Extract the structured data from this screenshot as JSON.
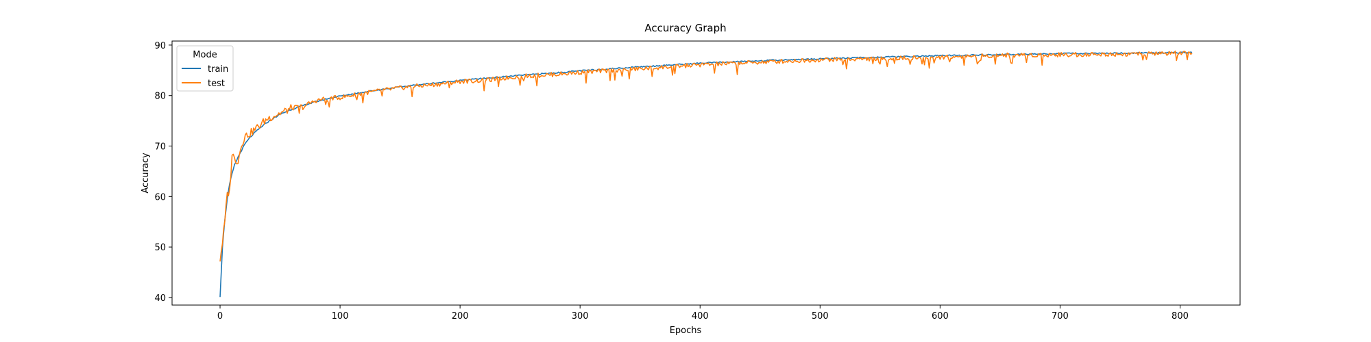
{
  "chart_data": {
    "type": "line",
    "title": "Accuracy Graph",
    "xlabel": "Epochs",
    "ylabel": "Accuracy",
    "xlim": [
      -40,
      850
    ],
    "ylim": [
      38.5,
      90.8
    ],
    "x_ticks": [
      0,
      100,
      200,
      300,
      400,
      500,
      600,
      700,
      800
    ],
    "y_ticks": [
      40,
      50,
      60,
      70,
      80,
      90
    ],
    "grid": false,
    "legend": {
      "title": "Mode",
      "placement": "top-left"
    },
    "x_range": [
      0,
      810
    ],
    "series": [
      {
        "name": "train",
        "color": "#1f77b4",
        "x": [
          0,
          2,
          4,
          6,
          8,
          10,
          12,
          15,
          18,
          21,
          25,
          30,
          35,
          40,
          50,
          60,
          70,
          80,
          90,
          100,
          120,
          140,
          160,
          180,
          200,
          220,
          250,
          280,
          300,
          350,
          400,
          450,
          500,
          550,
          600,
          650,
          700,
          750,
          800,
          810
        ],
        "values": [
          40.2,
          50.0,
          55.5,
          59.5,
          62.5,
          64.5,
          66.2,
          67.8,
          69.2,
          70.5,
          71.7,
          72.9,
          73.9,
          74.8,
          76.3,
          77.3,
          78.1,
          78.8,
          79.4,
          79.9,
          80.7,
          81.4,
          82.0,
          82.5,
          83.0,
          83.4,
          84.0,
          84.5,
          84.9,
          85.7,
          86.4,
          86.9,
          87.3,
          87.6,
          87.9,
          88.1,
          88.3,
          88.4,
          88.5,
          88.5
        ]
      },
      {
        "name": "test",
        "color": "#ff7f0e",
        "x": [
          0,
          2,
          4,
          6,
          8,
          10,
          12,
          15,
          18,
          21,
          25,
          30,
          35,
          40,
          50,
          60,
          70,
          80,
          90,
          100,
          120,
          140,
          160,
          180,
          200,
          220,
          250,
          280,
          300,
          350,
          400,
          450,
          500,
          550,
          600,
          650,
          700,
          750,
          800,
          810
        ],
        "values": [
          47.5,
          51.0,
          55.0,
          60.5,
          61.0,
          68.5,
          67.5,
          67.0,
          70.5,
          72.0,
          72.5,
          73.5,
          74.5,
          75.5,
          76.5,
          77.5,
          78.0,
          79.0,
          79.5,
          79.6,
          80.5,
          81.2,
          81.8,
          82.2,
          82.8,
          83.0,
          83.8,
          84.2,
          84.6,
          85.3,
          86.1,
          86.6,
          87.1,
          87.3,
          87.6,
          88.0,
          88.1,
          88.2,
          88.4,
          88.2
        ]
      }
    ]
  }
}
